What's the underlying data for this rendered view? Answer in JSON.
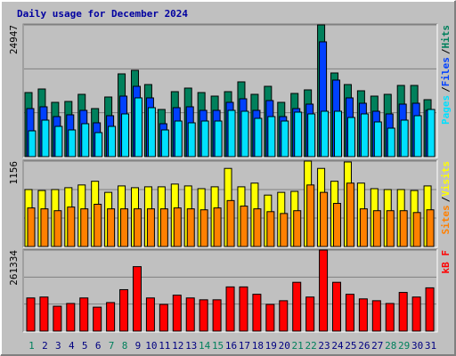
{
  "chart_data": [
    {
      "type": "bar",
      "title": "Daily usage for December 2024",
      "legend_separator": "/",
      "ylim": [
        0,
        24947
      ],
      "yticks": [
        24947
      ],
      "series": [
        {
          "name": "Hits",
          "color": "#00805c",
          "values": [
            12139,
            12813,
            10284,
            10453,
            11802,
            9104,
            11296,
            15679,
            16354,
            13656,
            8935,
            12307,
            12982,
            12139,
            11464,
            12307,
            14162,
            11802,
            13319,
            10284,
            11970,
            12645,
            24947,
            15848,
            13656,
            12476,
            11464,
            11802,
            13488,
            13488,
            10790
          ]
        },
        {
          "name": "Files",
          "color": "#0040ff",
          "values": [
            9104,
            9442,
            7587,
            7924,
            8767,
            6407,
            7756,
            11465,
            13319,
            11128,
            6238,
            9273,
            9442,
            8767,
            8767,
            10285,
            10959,
            8767,
            10622,
            7587,
            9104,
            9947,
            21749,
            14500,
            11128,
            10116,
            8599,
            8093,
            9947,
            10116,
            8767
          ]
        },
        {
          "name": "Pages",
          "color": "#00e0ff",
          "values": [
            4889,
            6913,
            5732,
            5058,
            6238,
            4552,
            5732,
            8093,
            11128,
            9273,
            5058,
            6744,
            6407,
            6744,
            6744,
            8767,
            8599,
            7250,
            7587,
            6744,
            8430,
            8093,
            8599,
            8599,
            7418,
            8093,
            6575,
            5395,
            6913,
            7756,
            8936
          ]
        }
      ]
    },
    {
      "type": "bar",
      "legend_separator": "/",
      "ylim": [
        0,
        1156
      ],
      "yticks": [
        1156
      ],
      "series": [
        {
          "name": "Visits",
          "color": "#ffff00",
          "values": [
            771,
            758,
            771,
            796,
            833,
            883,
            733,
            820,
            796,
            808,
            808,
            845,
            820,
            783,
            808,
            1057,
            808,
            858,
            696,
            733,
            746,
            1156,
            1057,
            883,
            1144,
            858,
            783,
            771,
            771,
            758,
            820
          ]
        },
        {
          "name": "Sites",
          "color": "#ff8000",
          "values": [
            522,
            510,
            485,
            534,
            510,
            572,
            510,
            510,
            510,
            510,
            510,
            522,
            510,
            497,
            522,
            622,
            547,
            510,
            472,
            447,
            485,
            833,
            733,
            584,
            858,
            510,
            485,
            485,
            485,
            460,
            497
          ]
        }
      ]
    },
    {
      "type": "bar",
      "ylim": [
        0,
        261334
      ],
      "yticks": [
        261334
      ],
      "categories": [
        "1",
        "2",
        "3",
        "4",
        "5",
        "6",
        "7",
        "8",
        "9",
        "10",
        "11",
        "12",
        "13",
        "14",
        "15",
        "16",
        "17",
        "18",
        "19",
        "20",
        "21",
        "22",
        "23",
        "24",
        "25",
        "26",
        "27",
        "28",
        "29",
        "30",
        "31"
      ],
      "label_color": "#000080",
      "highlight_color": "#00805c",
      "highlighted": [
        0,
        6,
        7,
        13,
        14,
        20,
        21,
        27,
        28
      ],
      "series": [
        {
          "name": "kB F",
          "color": "#ff0000",
          "values": [
            106920,
            109890,
            80190,
            89100,
            106920,
            77220,
            92070,
            133650,
            207900,
            106920,
            86130,
            115830,
            106920,
            100980,
            100980,
            142560,
            142560,
            118800,
            86130,
            98010,
            157410,
            109890,
            261334,
            157410,
            118800,
            103950,
            98010,
            89100,
            124740,
            109890,
            139590
          ]
        }
      ]
    }
  ]
}
